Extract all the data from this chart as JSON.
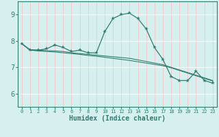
{
  "xlabel": "Humidex (Indice chaleur)",
  "ylabel": "",
  "xlim": [
    -0.5,
    23.5
  ],
  "ylim": [
    5.5,
    9.5
  ],
  "yticks": [
    6,
    7,
    8,
    9
  ],
  "xticks": [
    0,
    1,
    2,
    3,
    4,
    5,
    6,
    7,
    8,
    9,
    10,
    11,
    12,
    13,
    14,
    15,
    16,
    17,
    18,
    19,
    20,
    21,
    22,
    23
  ],
  "background_color": "#d6efef",
  "grid_color_v": "#f0c8c8",
  "grid_color_h": "#ffffff",
  "line_color": "#2e7d6e",
  "line1_x": [
    0,
    1,
    2,
    3,
    4,
    5,
    6,
    7,
    8,
    9,
    10,
    11,
    12,
    13,
    14,
    15,
    16,
    17,
    18,
    19,
    20,
    21,
    22,
    23
  ],
  "line1_y": [
    7.9,
    7.65,
    7.65,
    7.7,
    7.85,
    7.75,
    7.6,
    7.65,
    7.55,
    7.55,
    8.35,
    8.85,
    9.0,
    9.05,
    8.85,
    8.45,
    7.75,
    7.3,
    6.65,
    6.5,
    6.5,
    6.85,
    6.5,
    6.4
  ],
  "line2_x": [
    0,
    1,
    2,
    3,
    4,
    5,
    6,
    7,
    8,
    9,
    10,
    11,
    12,
    13,
    14,
    15,
    16,
    17,
    18,
    19,
    20,
    21,
    22,
    23
  ],
  "line2_y": [
    7.9,
    7.67,
    7.65,
    7.63,
    7.62,
    7.6,
    7.55,
    7.52,
    7.49,
    7.46,
    7.43,
    7.4,
    7.37,
    7.34,
    7.28,
    7.22,
    7.16,
    7.1,
    7.0,
    6.9,
    6.8,
    6.7,
    6.6,
    6.5
  ],
  "line3_x": [
    0,
    1,
    2,
    3,
    4,
    5,
    6,
    7,
    8,
    9,
    10,
    11,
    12,
    13,
    14,
    15,
    16,
    17,
    18,
    19,
    20,
    21,
    22,
    23
  ],
  "line3_y": [
    7.9,
    7.65,
    7.62,
    7.6,
    7.58,
    7.55,
    7.52,
    7.49,
    7.45,
    7.42,
    7.38,
    7.34,
    7.3,
    7.26,
    7.21,
    7.16,
    7.11,
    7.06,
    6.98,
    6.88,
    6.78,
    6.68,
    6.58,
    6.48
  ]
}
